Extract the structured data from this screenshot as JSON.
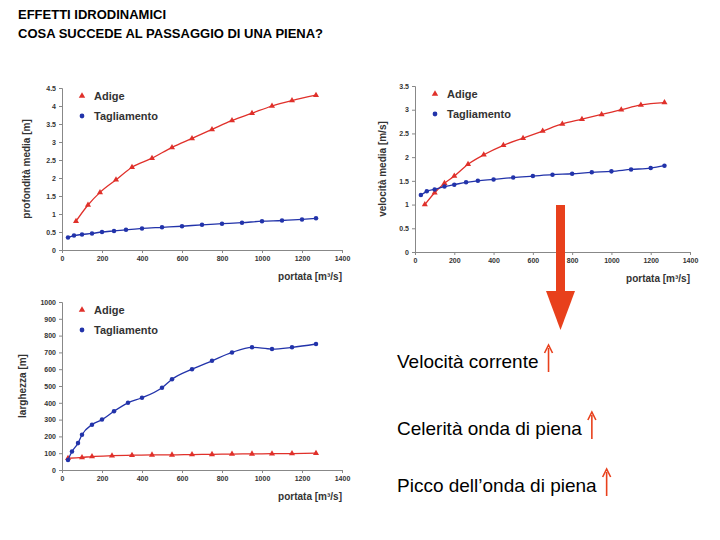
{
  "slide": {
    "title": [
      "EFFETTI IDRODINAMICI",
      "COSA SUCCEDE AL PASSAGGIO DI UNA PIENA?"
    ],
    "effects": [
      "Velocità corrente",
      "Celerità onda di piena",
      "Picco dell’onda di piena"
    ]
  },
  "chart_data": [
    {
      "type": "line",
      "xlabel": "portata [m³/s]",
      "ylabel": "profondità media [m]",
      "xlim": [
        0,
        1400
      ],
      "xticks": [
        0,
        200,
        400,
        600,
        800,
        1000,
        1200,
        1400
      ],
      "ylim": [
        0,
        4.5
      ],
      "yticks": [
        0,
        0.5,
        1,
        1.5,
        2,
        2.5,
        3,
        3.5,
        4,
        4.5
      ],
      "legend": "upper left",
      "series": [
        {
          "name": "Adige",
          "color": "#e0302a",
          "marker": "triangle",
          "x": [
            70,
            130,
            190,
            270,
            350,
            450,
            550,
            650,
            750,
            850,
            950,
            1050,
            1150,
            1270
          ],
          "values": [
            0.8,
            1.25,
            1.6,
            1.95,
            2.3,
            2.55,
            2.85,
            3.1,
            3.35,
            3.6,
            3.8,
            4.0,
            4.15,
            4.3
          ]
        },
        {
          "name": "Tagliamento",
          "color": "#2233aa",
          "marker": "circle",
          "x": [
            30,
            60,
            100,
            150,
            200,
            260,
            320,
            400,
            500,
            600,
            700,
            800,
            900,
            1000,
            1100,
            1200,
            1270
          ],
          "values": [
            0.35,
            0.4,
            0.43,
            0.46,
            0.5,
            0.53,
            0.56,
            0.6,
            0.63,
            0.66,
            0.7,
            0.73,
            0.76,
            0.8,
            0.82,
            0.85,
            0.88
          ]
        }
      ]
    },
    {
      "type": "line",
      "xlabel": "portata [m³/s]",
      "ylabel": "velocità media [m/s]",
      "xlim": [
        0,
        1400
      ],
      "xticks": [
        0,
        200,
        400,
        600,
        800,
        1000,
        1200,
        1400
      ],
      "ylim": [
        0,
        3.5
      ],
      "yticks": [
        0,
        0.5,
        1,
        1.5,
        2,
        2.5,
        3,
        3.5
      ],
      "legend": "upper left",
      "series": [
        {
          "name": "Adige",
          "color": "#e0302a",
          "marker": "triangle",
          "x": [
            50,
            100,
            150,
            200,
            270,
            350,
            450,
            550,
            650,
            750,
            850,
            950,
            1050,
            1150,
            1270
          ],
          "values": [
            1.0,
            1.25,
            1.45,
            1.6,
            1.85,
            2.05,
            2.25,
            2.4,
            2.55,
            2.7,
            2.8,
            2.9,
            3.0,
            3.1,
            3.15
          ]
        },
        {
          "name": "Tagliamento",
          "color": "#2233aa",
          "marker": "circle",
          "x": [
            30,
            60,
            100,
            150,
            200,
            260,
            320,
            400,
            500,
            600,
            700,
            800,
            900,
            1000,
            1100,
            1200,
            1270
          ],
          "values": [
            1.2,
            1.28,
            1.32,
            1.38,
            1.42,
            1.47,
            1.5,
            1.53,
            1.57,
            1.6,
            1.63,
            1.65,
            1.68,
            1.7,
            1.74,
            1.77,
            1.82
          ]
        }
      ]
    },
    {
      "type": "line",
      "xlabel": "portata [m³/s]",
      "ylabel": "larghezza [m]",
      "xlim": [
        0,
        1400
      ],
      "xticks": [
        0,
        200,
        400,
        600,
        800,
        1000,
        1200,
        1400
      ],
      "ylim": [
        0,
        1000
      ],
      "yticks": [
        0,
        100,
        200,
        300,
        400,
        500,
        600,
        700,
        800,
        900,
        1000
      ],
      "legend": "upper left",
      "series": [
        {
          "name": "Adige",
          "color": "#e0302a",
          "marker": "triangle",
          "x": [
            30,
            100,
            150,
            250,
            350,
            450,
            550,
            650,
            750,
            850,
            950,
            1050,
            1150,
            1270
          ],
          "values": [
            70,
            75,
            80,
            85,
            88,
            90,
            90,
            92,
            93,
            95,
            96,
            97,
            98,
            100
          ]
        },
        {
          "name": "Tagliamento",
          "color": "#2233aa",
          "marker": "circle",
          "x": [
            30,
            50,
            80,
            100,
            150,
            200,
            260,
            330,
            400,
            500,
            550,
            650,
            750,
            850,
            950,
            1050,
            1150,
            1270
          ],
          "values": [
            60,
            110,
            160,
            210,
            270,
            300,
            350,
            400,
            430,
            490,
            540,
            600,
            650,
            700,
            730,
            720,
            730,
            750
          ]
        }
      ]
    }
  ]
}
